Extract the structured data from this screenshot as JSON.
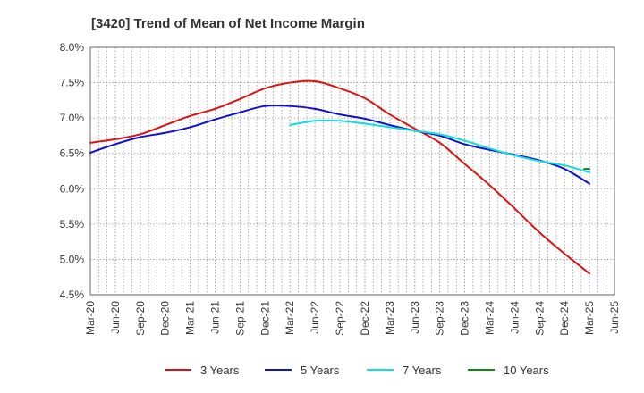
{
  "chart_data": {
    "type": "line",
    "title": "[3420]  Trend of Mean of Net Income Margin",
    "xlabel": "",
    "ylabel": "",
    "ylim": [
      4.5,
      8.0
    ],
    "yticks": [
      4.5,
      5.0,
      5.5,
      6.0,
      6.5,
      7.0,
      7.5,
      8.0
    ],
    "ytick_labels": [
      "4.5%",
      "5.0%",
      "5.5%",
      "6.0%",
      "6.5%",
      "7.0%",
      "7.5%",
      "8.0%"
    ],
    "xtick_labels": [
      "Mar-20",
      "Jun-20",
      "Sep-20",
      "Dec-20",
      "Mar-21",
      "Jun-21",
      "Sep-21",
      "Dec-21",
      "Mar-22",
      "Jun-22",
      "Sep-22",
      "Dec-22",
      "Mar-23",
      "Jun-23",
      "Sep-23",
      "Dec-23",
      "Mar-24",
      "Jun-24",
      "Sep-24",
      "Dec-24",
      "Mar-25",
      "Jun-25"
    ],
    "grid": true,
    "legend_position": "bottom",
    "series": [
      {
        "name": "3 Years",
        "color": "#dd1111",
        "x": [
          "Mar-20",
          "Jun-20",
          "Sep-20",
          "Dec-20",
          "Mar-21",
          "Jun-21",
          "Sep-21",
          "Dec-21",
          "Mar-22",
          "Jun-22",
          "Sep-22",
          "Dec-22",
          "Mar-23",
          "Jun-23",
          "Sep-23",
          "Dec-23",
          "Mar-24",
          "Jun-24",
          "Sep-24",
          "Dec-24",
          "Mar-25"
        ],
        "values": [
          6.65,
          6.7,
          6.77,
          6.9,
          7.03,
          7.13,
          7.27,
          7.42,
          7.5,
          7.52,
          7.42,
          7.28,
          7.05,
          6.85,
          6.65,
          6.35,
          6.05,
          5.72,
          5.38,
          5.08,
          4.8
        ]
      },
      {
        "name": "5 Years",
        "color": "#1111cc",
        "x": [
          "Mar-20",
          "Jun-20",
          "Sep-20",
          "Dec-20",
          "Mar-21",
          "Jun-21",
          "Sep-21",
          "Dec-21",
          "Mar-22",
          "Jun-22",
          "Sep-22",
          "Dec-22",
          "Mar-23",
          "Jun-23",
          "Sep-23",
          "Dec-23",
          "Mar-24",
          "Jun-24",
          "Sep-24",
          "Dec-24",
          "Mar-25"
        ],
        "values": [
          6.51,
          6.63,
          6.73,
          6.79,
          6.87,
          6.98,
          7.08,
          7.17,
          7.17,
          7.13,
          7.05,
          6.99,
          6.9,
          6.82,
          6.75,
          6.63,
          6.55,
          6.48,
          6.4,
          6.28,
          6.07
        ]
      },
      {
        "name": "7 Years",
        "color": "#11dddd",
        "x": [
          "Mar-22",
          "Jun-22",
          "Sep-22",
          "Dec-22",
          "Mar-23",
          "Jun-23",
          "Sep-23",
          "Dec-23",
          "Mar-24",
          "Jun-24",
          "Sep-24",
          "Dec-24",
          "Mar-25"
        ],
        "values": [
          6.9,
          6.96,
          6.96,
          6.92,
          6.87,
          6.82,
          6.77,
          6.68,
          6.57,
          6.47,
          6.39,
          6.33,
          6.23
        ]
      },
      {
        "name": "10 Years",
        "color": "#118811",
        "x": [
          "Mar-25"
        ],
        "values": [
          6.28
        ]
      }
    ]
  }
}
